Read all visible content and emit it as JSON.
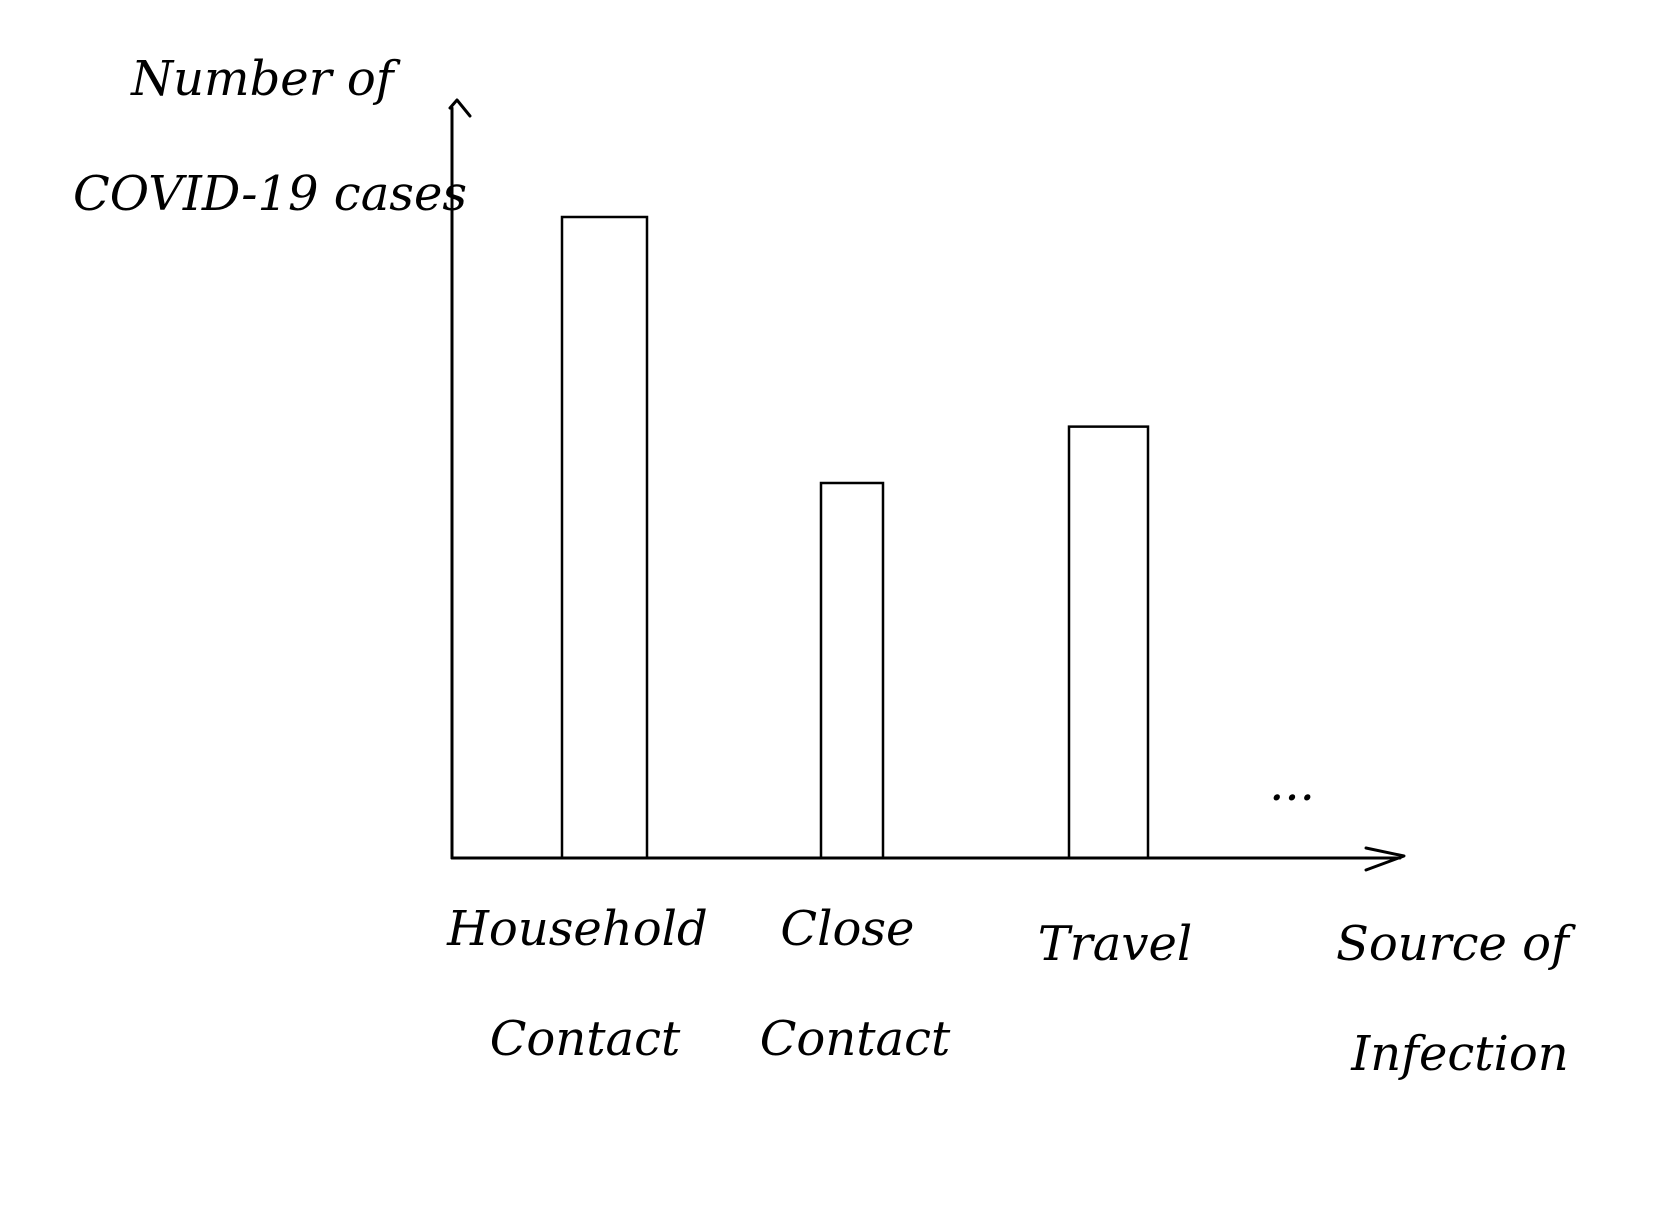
{
  "chart_data": {
    "type": "bar",
    "ylabel": [
      "Number of",
      "COVID-19 cases"
    ],
    "xlabel": [
      "Source of",
      "Infection"
    ],
    "categories": [
      [
        "Household",
        "Contact"
      ],
      [
        "Close",
        "Contact"
      ],
      [
        "Travel"
      ]
    ],
    "values": [
      100,
      58.5,
      67.3
    ],
    "ylim": [
      0,
      117
    ],
    "continuation_mark": "...",
    "grid": false,
    "legend": "none",
    "colors": {
      "ink": "#000000",
      "background": "#ffffff"
    }
  }
}
